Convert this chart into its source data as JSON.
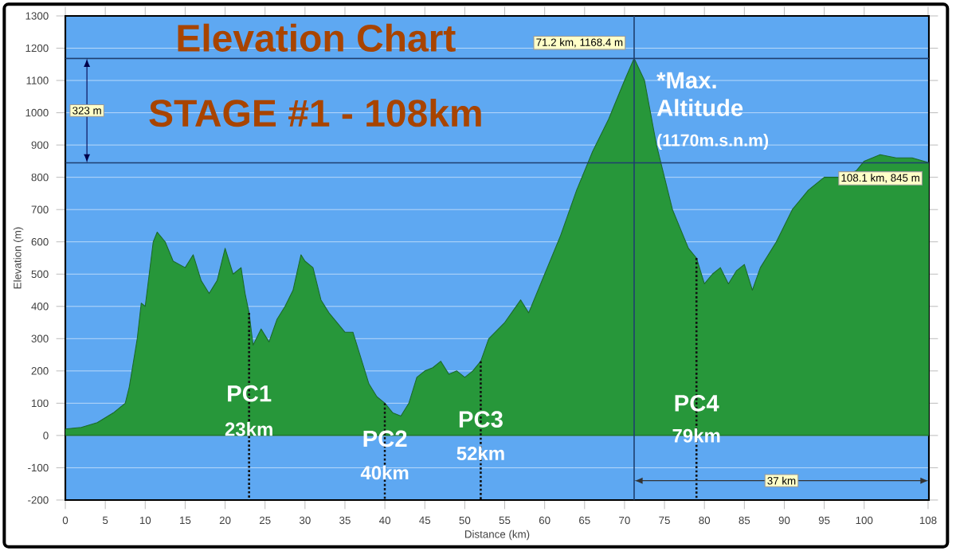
{
  "chart_data": {
    "type": "area",
    "title": "Elevation Chart",
    "subtitle": "STAGE #1 - 108km",
    "xlabel": "Distance (km)",
    "ylabel": "Elevation (m)",
    "x": [
      0,
      2,
      4,
      6,
      7.5,
      8,
      9,
      9.5,
      10,
      11,
      11.5,
      12.5,
      13.5,
      15,
      16,
      17,
      18,
      19,
      20,
      21,
      22,
      22.5,
      23,
      23.5,
      24.5,
      25.5,
      26.5,
      27.5,
      28.5,
      29.5,
      30,
      31,
      32,
      33,
      35,
      36,
      37,
      38,
      39,
      40,
      41,
      42,
      43,
      44,
      45,
      46,
      47,
      48,
      49,
      50,
      51,
      52,
      53,
      55,
      57,
      58,
      60,
      62,
      64,
      66,
      68,
      70,
      71.2,
      72.5,
      74,
      76,
      78,
      79,
      80,
      81,
      82,
      83,
      84,
      85,
      86,
      87,
      89,
      91,
      93,
      95,
      97,
      99,
      100,
      102,
      104,
      106,
      108.1
    ],
    "series": [
      {
        "color": "#27973a",
        "values": [
          20,
          25,
          40,
          70,
          100,
          150,
          300,
          410,
          400,
          600,
          630,
          600,
          540,
          520,
          560,
          480,
          440,
          480,
          580,
          500,
          520,
          440,
          380,
          280,
          330,
          290,
          360,
          400,
          450,
          560,
          540,
          520,
          420,
          380,
          320,
          320,
          240,
          160,
          120,
          100,
          70,
          60,
          100,
          180,
          200,
          210,
          230,
          190,
          200,
          180,
          200,
          230,
          300,
          350,
          420,
          380,
          500,
          620,
          760,
          880,
          980,
          1100,
          1168.4,
          1100,
          900,
          700,
          580,
          550,
          470,
          500,
          520,
          470,
          510,
          530,
          450,
          520,
          600,
          700,
          760,
          800,
          800,
          820,
          850,
          870,
          860,
          860,
          845
        ]
      }
    ],
    "xlim": [
      0,
      108.1
    ],
    "ylim": [
      -200,
      1300
    ],
    "xticks": [
      0,
      5,
      10,
      15,
      20,
      25,
      30,
      35,
      40,
      45,
      50,
      55,
      60,
      65,
      70,
      75,
      80,
      85,
      90,
      95,
      100,
      108
    ],
    "yticks": [
      -200,
      -100,
      0,
      100,
      200,
      300,
      400,
      500,
      600,
      700,
      800,
      900,
      1000,
      1100,
      1200,
      1300
    ],
    "grid": "y",
    "ref_lines": [
      {
        "axis": "y",
        "value": 845,
        "color": "#1f3f6f"
      },
      {
        "axis": "y",
        "value": 1168.4,
        "color": "#1f3f6f"
      },
      {
        "axis": "x",
        "value": 71.2,
        "color": "#1f3f6f"
      },
      {
        "axis": "x",
        "value": 23,
        "color": "#111111",
        "line_style": "dotted"
      },
      {
        "axis": "x",
        "value": 40,
        "color": "#111111",
        "line_style": "dotted"
      },
      {
        "axis": "x",
        "value": 52,
        "color": "#111111",
        "line_style": "dotted"
      },
      {
        "axis": "x",
        "value": 79,
        "color": "#111111",
        "line_style": "dotted"
      }
    ],
    "annotations": [
      {
        "text": "71.2 km, 1168.4 m",
        "x": 71.2,
        "y": 1168.4
      },
      {
        "text": "108.1 km, 845 m",
        "x": 108.1,
        "y": 845
      },
      {
        "text": "*Max. Altitude",
        "x": 71.2,
        "y": 1168.4
      },
      "(1170m.s.n.m)",
      "323 m",
      "37 km",
      {
        "text": "PC1",
        "x": 23,
        "y": 130
      },
      {
        "text": "23km",
        "x": 23,
        "y": 20
      },
      {
        "text": "PC2",
        "x": 40,
        "y": -10
      },
      {
        "text": "40km",
        "x": 40,
        "y": -115
      },
      {
        "text": "PC3",
        "x": 52,
        "y": 50
      },
      {
        "text": "52km",
        "x": 52,
        "y": -55
      },
      {
        "text": "PC4",
        "x": 79,
        "y": 100
      },
      {
        "text": "79km",
        "x": 79,
        "y": 0
      }
    ]
  }
}
